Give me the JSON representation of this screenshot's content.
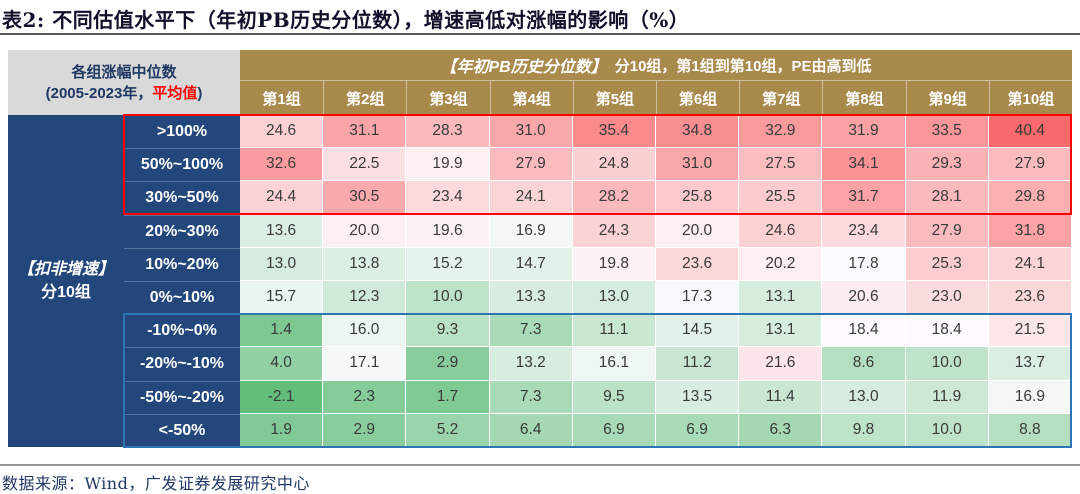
{
  "title": "表2: 不同估值水平下（年初PB历史分位数），增速高低对涨幅的影响（%）",
  "footer": {
    "source": "数据来源：Wind，广发证券发展研究中心"
  },
  "table": {
    "corner_line1": "各组涨幅中位数",
    "corner_line2_pre": "(2005-2023年，",
    "corner_line2_hl": "平均值",
    "corner_line2_post": ")",
    "group_em": "【年初PB历史分位数】",
    "group_rest": "分10组，第1组到第10组，PE由高到低",
    "left_em": "【扣非增速】",
    "left_rest": "分10组"
  },
  "colors": {
    "header_gold": "#A98A4D",
    "navy": "#24477B",
    "corner_gray": "#D9D9D9",
    "red_box": "#FF0000",
    "blue_box": "#2E75B6",
    "heat_high": "#F8696B",
    "heat_mid": "#FCFCFF",
    "heat_low": "#63BE7B",
    "highlight_text": "#FF0000"
  },
  "chart_data": {
    "type": "heatmap",
    "title": "表2: 不同估值水平下（年初PB历史分位数），增速高低对涨幅的影响（%）",
    "column_group_label": "【年初PB历史分位数】分10组，第1组到第10组，PE由高到低",
    "row_group_label": "【扣非增速】分10组",
    "corner_label": "各组涨幅中位数 (2005-2023年，平均值)",
    "value_unit": "%",
    "columns": [
      "第1组",
      "第2组",
      "第3组",
      "第4组",
      "第5组",
      "第6组",
      "第7组",
      "第8组",
      "第9组",
      "第10组"
    ],
    "rows": [
      ">100%",
      "50%~100%",
      "30%~50%",
      "20%~30%",
      "10%~20%",
      "0%~10%",
      "-10%~0%",
      "-20%~-10%",
      "-50%~-20%",
      "<-50%"
    ],
    "values": [
      [
        24.6,
        31.1,
        28.3,
        31.0,
        35.4,
        34.8,
        32.9,
        31.9,
        33.5,
        40.4
      ],
      [
        32.6,
        22.5,
        19.9,
        27.9,
        24.8,
        31.0,
        27.5,
        34.1,
        29.3,
        27.9
      ],
      [
        24.4,
        30.5,
        23.4,
        24.1,
        28.2,
        25.8,
        25.5,
        31.7,
        28.1,
        29.8
      ],
      [
        13.6,
        20.0,
        19.6,
        16.9,
        24.3,
        20.0,
        24.6,
        23.4,
        27.9,
        31.8
      ],
      [
        13.0,
        13.8,
        15.2,
        14.7,
        19.8,
        23.6,
        20.2,
        17.8,
        25.3,
        24.1
      ],
      [
        15.7,
        12.3,
        10.0,
        13.3,
        13.0,
        17.3,
        13.1,
        20.6,
        23.0,
        23.6
      ],
      [
        1.4,
        16.0,
        9.3,
        7.3,
        11.1,
        14.5,
        13.1,
        18.4,
        18.4,
        21.5
      ],
      [
        4.0,
        17.1,
        2.9,
        13.2,
        16.1,
        11.2,
        21.6,
        8.6,
        10.0,
        13.7
      ],
      [
        -2.1,
        2.3,
        1.7,
        7.3,
        9.5,
        13.5,
        11.4,
        13.0,
        11.9,
        16.9
      ],
      [
        1.9,
        2.9,
        5.2,
        6.4,
        6.9,
        6.9,
        6.3,
        9.8,
        10.0,
        8.8
      ]
    ],
    "color_scale": {
      "low": "#63BE7B",
      "mid": "#FCFCFF",
      "high": "#F8696B",
      "midpoint": "median"
    },
    "annotations": [
      {
        "name": "red-box",
        "rows": [
          0,
          2
        ],
        "meaning": "high-growth groups outlined in red"
      },
      {
        "name": "blue-box",
        "rows": [
          6,
          9
        ],
        "meaning": "negative-growth groups outlined in blue"
      }
    ],
    "legend_position": "none",
    "grid": false
  }
}
